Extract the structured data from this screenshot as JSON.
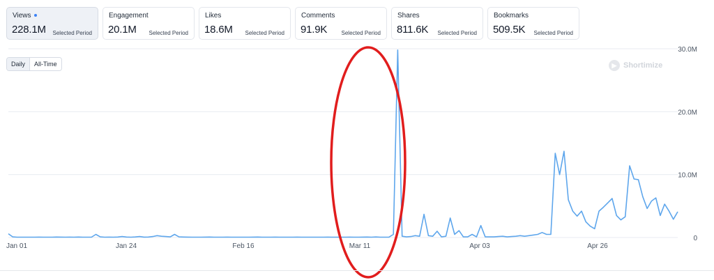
{
  "metrics": [
    {
      "label": "Views",
      "value": "228.1M",
      "period": "Selected Period",
      "active": true
    },
    {
      "label": "Engagement",
      "value": "20.1M",
      "period": "Selected Period",
      "active": false
    },
    {
      "label": "Likes",
      "value": "18.6M",
      "period": "Selected Period",
      "active": false
    },
    {
      "label": "Comments",
      "value": "91.9K",
      "period": "Selected Period",
      "active": false
    },
    {
      "label": "Shares",
      "value": "811.6K",
      "period": "Selected Period",
      "active": false
    },
    {
      "label": "Bookmarks",
      "value": "509.5K",
      "period": "Selected Period",
      "active": false
    }
  ],
  "toggle": {
    "daily": "Daily",
    "alltime": "All-Time",
    "selected": "Daily"
  },
  "watermark": "Shortimize",
  "colors": {
    "line": "#5ea6ec",
    "annotation": "#e11d1d",
    "grid": "#e8ebf0",
    "accent": "#3b82f6"
  },
  "chart_data": {
    "type": "line",
    "x_tick_labels": [
      "Jan 01",
      "Jan 24",
      "Feb 16",
      "Mar 11",
      "Apr 03",
      "Apr 26"
    ],
    "y_tick_labels": [
      "0",
      "10.0M",
      "20.0M",
      "30.0M"
    ],
    "ylim": [
      0,
      30000000
    ],
    "grid": true,
    "annotation": "red ellipse around the Mar 11 spike",
    "series": [
      {
        "values": [
          600000,
          100000,
          50000,
          60000,
          50000,
          60000,
          50000,
          70000,
          60000,
          50000,
          60000,
          80000,
          70000,
          60000,
          70000,
          60000,
          80000,
          60000,
          50000,
          60000,
          500000,
          100000,
          60000,
          70000,
          60000,
          80000,
          150000,
          80000,
          60000,
          90000,
          150000,
          70000,
          80000,
          150000,
          300000,
          200000,
          150000,
          100000,
          500000,
          100000,
          80000,
          70000,
          60000,
          50000,
          60000,
          70000,
          80000,
          60000,
          50000,
          60000,
          70000,
          60000,
          50000,
          60000,
          50000,
          60000,
          70000,
          80000,
          60000,
          50000,
          60000,
          70000,
          50000,
          60000,
          50000,
          60000,
          70000,
          50000,
          60000,
          50000,
          60000,
          50000,
          60000,
          70000,
          50000,
          60000,
          50000,
          60000,
          70000,
          50000,
          60000,
          70000,
          80000,
          60000,
          90000,
          50000,
          60000,
          70000,
          500000,
          29800000,
          200000,
          100000,
          150000,
          300000,
          200000,
          3700000,
          300000,
          200000,
          1000000,
          100000,
          200000,
          3100000,
          500000,
          1100000,
          100000,
          100000,
          500000,
          100000,
          1900000,
          100000,
          100000,
          100000,
          150000,
          200000,
          100000,
          150000,
          200000,
          300000,
          200000,
          300000,
          400000,
          500000,
          800000,
          500000,
          500000,
          13400000,
          10000000,
          13700000,
          6000000,
          4200000,
          3400000,
          4200000,
          2500000,
          1800000,
          1400000,
          4200000,
          4800000,
          5500000,
          6200000,
          3500000,
          2800000,
          3300000,
          11400000,
          9300000,
          9200000,
          6500000,
          4600000,
          5800000,
          6300000,
          3500000,
          5300000,
          4200000,
          2900000,
          4100000
        ]
      }
    ]
  }
}
